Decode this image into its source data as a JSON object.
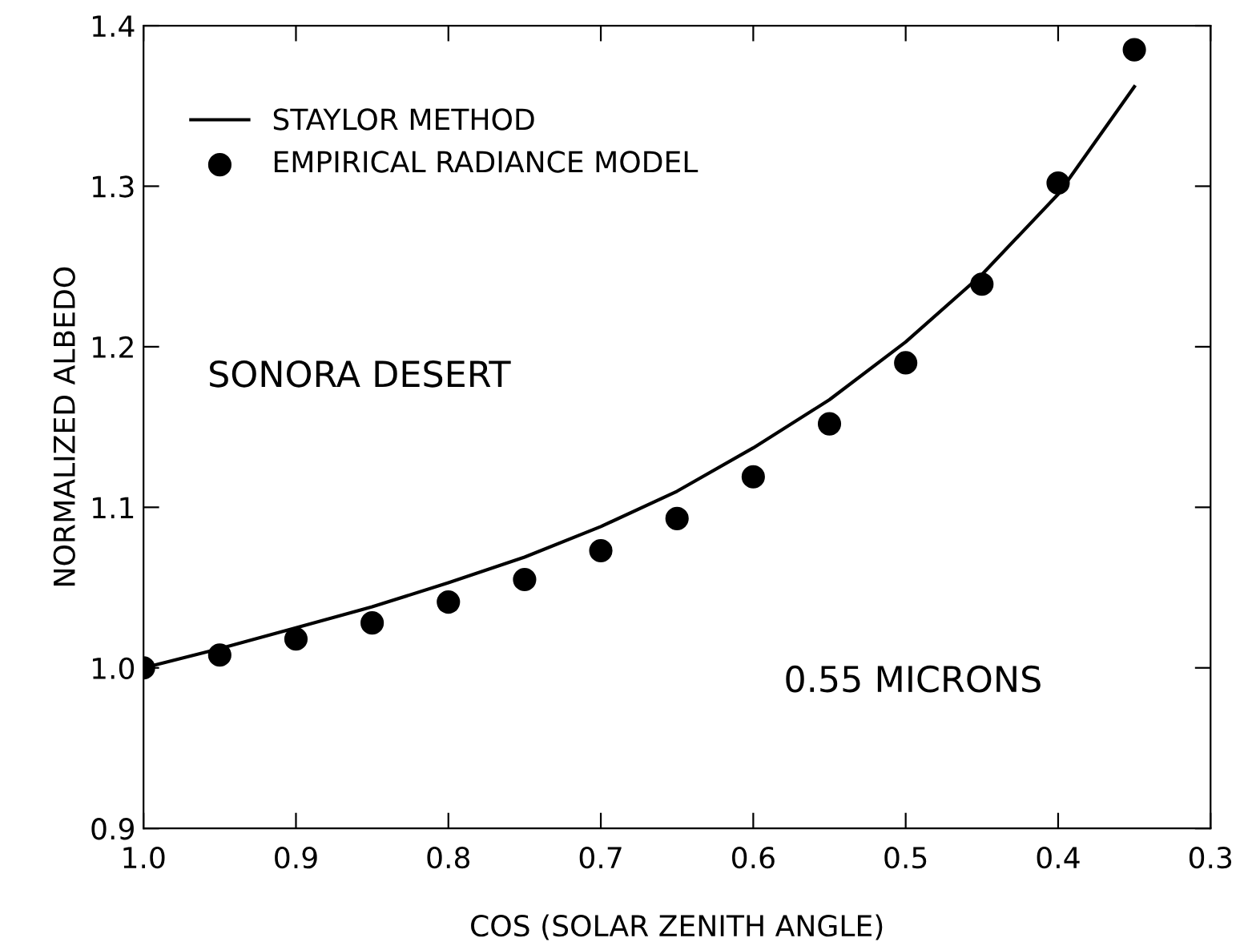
{
  "chart_data": {
    "type": "line",
    "xlabel": "COS (SOLAR ZENITH ANGLE)",
    "ylabel": "NORMALIZED ALBEDO",
    "xlim": [
      1.0,
      0.3
    ],
    "xticks": [
      {
        "value": 1.0,
        "label": "1.0"
      },
      0.9,
      0.8,
      0.7,
      0.6,
      0.5,
      0.4,
      0.3
    ],
    "ylim": [
      0.9,
      1.4
    ],
    "yticks": [
      0.9,
      {
        "value": 1.0,
        "label": "1.0"
      },
      1.1,
      1.2,
      1.3,
      1.4
    ],
    "grid": false,
    "legend": "top left",
    "series": [
      {
        "name": "STAYLOR METHOD",
        "color": "#000000",
        "marker": "none",
        "line_style": "solid",
        "x": [
          1.0,
          0.95,
          0.9,
          0.85,
          0.8,
          0.75,
          0.7,
          0.65,
          0.6,
          0.55,
          0.5,
          0.45,
          0.4,
          0.35
        ],
        "values": [
          1.0,
          1.012,
          1.025,
          1.038,
          1.053,
          1.069,
          1.088,
          1.11,
          1.137,
          1.167,
          1.203,
          1.245,
          1.295,
          1.362
        ]
      },
      {
        "name": "EMPIRICAL RADIANCE MODEL",
        "type": "scatter",
        "color": "#000000",
        "marker": "circle",
        "x": [
          1.0,
          0.95,
          0.9,
          0.85,
          0.8,
          0.75,
          0.7,
          0.65,
          0.6,
          0.55,
          0.5,
          0.45,
          0.4,
          0.35
        ],
        "values": [
          1.0,
          1.008,
          1.018,
          1.028,
          1.041,
          1.055,
          1.073,
          1.093,
          1.119,
          1.152,
          1.19,
          1.239,
          1.302,
          1.385
        ]
      }
    ],
    "annotations": [
      "SONORA DESERT",
      "0.55 MICRONS"
    ]
  }
}
